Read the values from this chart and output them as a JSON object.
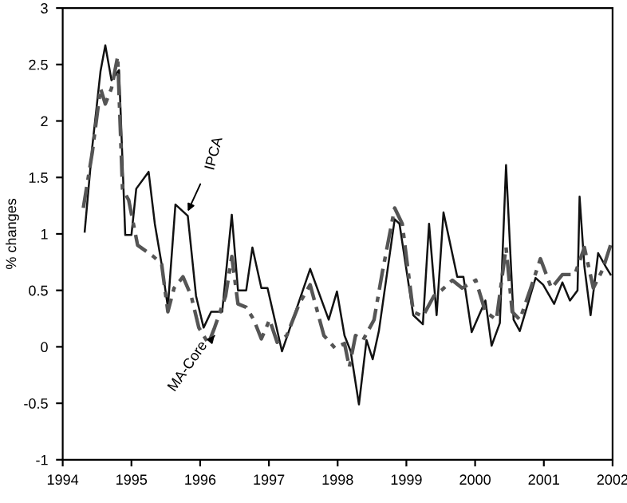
{
  "chart_data": {
    "type": "line",
    "ylabel": "% changes",
    "xlim": [
      1994,
      2002
    ],
    "ylim": [
      -1,
      3
    ],
    "xticks": [
      1994,
      1995,
      1996,
      1997,
      1998,
      1999,
      2000,
      2001,
      2002
    ],
    "yticks": [
      {
        "value": -1,
        "label": "-1"
      },
      {
        "value": -0.5,
        "label": "-0.5"
      },
      0,
      0.5,
      1,
      1.5,
      2,
      2.5,
      3
    ],
    "grid": false,
    "legend": false,
    "series": [
      {
        "color": "#111111",
        "line_style": "solid",
        "x": [
          1994.32,
          1994.43,
          1994.55,
          1994.62,
          1994.71,
          1994.82,
          1994.91,
          1995.0,
          1995.07,
          1995.25,
          1995.34,
          1995.44,
          1995.53,
          1995.64,
          1995.82,
          1995.94,
          1996.05,
          1996.16,
          1996.32,
          1996.46,
          1996.55,
          1996.67,
          1996.76,
          1996.89,
          1996.98,
          1997.19,
          1997.6,
          1997.87,
          1997.99,
          1998.1,
          1998.19,
          1998.31,
          1998.42,
          1998.51,
          1998.6,
          1998.83,
          1998.9,
          1999.1,
          1999.24,
          1999.33,
          1999.44,
          1999.54,
          1999.74,
          1999.83,
          1999.95,
          2000.15,
          2000.24,
          2000.36,
          2000.45,
          2000.56,
          2000.65,
          2000.88,
          2000.99,
          2001.15,
          2001.27,
          2001.38,
          2001.49,
          2001.52,
          2001.59,
          2001.68,
          2001.79,
          2001.9,
          2001.97
        ],
        "values": [
          1.02,
          1.77,
          2.44,
          2.67,
          2.36,
          2.45,
          0.99,
          0.99,
          1.4,
          1.55,
          1.09,
          0.73,
          0.35,
          1.26,
          1.16,
          0.45,
          0.17,
          0.31,
          0.31,
          1.17,
          0.5,
          0.5,
          0.88,
          0.52,
          0.52,
          -0.04,
          0.69,
          0.24,
          0.49,
          0.1,
          -0.04,
          -0.51,
          0.06,
          -0.11,
          0.14,
          1.13,
          1.09,
          0.28,
          0.2,
          1.09,
          0.28,
          1.19,
          0.62,
          0.62,
          0.13,
          0.41,
          0.01,
          0.21,
          1.61,
          0.24,
          0.14,
          0.61,
          0.55,
          0.38,
          0.57,
          0.41,
          0.5,
          1.33,
          0.71,
          0.28,
          0.83,
          0.71,
          0.64
        ]
      },
      {
        "color": "#555555",
        "line_style": "dashed",
        "x": [
          1994.3,
          1994.43,
          1994.55,
          1994.62,
          1994.71,
          1994.8,
          1994.87,
          1994.96,
          1995.09,
          1995.32,
          1995.44,
          1995.53,
          1995.62,
          1995.75,
          1995.87,
          1995.98,
          1996.12,
          1996.21,
          1996.37,
          1996.46,
          1996.55,
          1996.67,
          1996.78,
          1996.89,
          1997.01,
          1997.12,
          1997.26,
          1997.44,
          1997.6,
          1997.8,
          1997.96,
          1998.1,
          1998.17,
          1998.26,
          1998.37,
          1998.53,
          1998.65,
          1998.83,
          1998.94,
          1999.1,
          1999.24,
          1999.4,
          1999.51,
          1999.67,
          1999.81,
          2000.01,
          2000.15,
          2000.31,
          2000.45,
          2000.54,
          2000.65,
          2000.81,
          2000.95,
          2001.11,
          2001.27,
          2001.45,
          2001.59,
          2001.72,
          2001.86,
          2001.97
        ],
        "values": [
          1.23,
          1.72,
          2.29,
          2.15,
          2.29,
          2.57,
          1.4,
          1.3,
          0.9,
          0.8,
          0.73,
          0.31,
          0.52,
          0.62,
          0.45,
          0.17,
          0.03,
          0.17,
          0.45,
          0.8,
          0.38,
          0.35,
          0.24,
          0.07,
          0.24,
          0.04,
          0.1,
          0.38,
          0.55,
          0.1,
          -0.01,
          0.03,
          -0.18,
          0.1,
          0.06,
          0.24,
          0.66,
          1.23,
          1.09,
          0.31,
          0.27,
          0.45,
          0.5,
          0.59,
          0.52,
          0.59,
          0.31,
          0.24,
          0.88,
          0.31,
          0.24,
          0.52,
          0.78,
          0.52,
          0.64,
          0.64,
          0.88,
          0.52,
          0.69,
          0.9
        ]
      }
    ],
    "annotations": [
      {
        "text": "IPCA",
        "x": 1995.82,
        "y": 1.2
      },
      {
        "text": "MA-Core",
        "x": 1996.21,
        "y": 0.1
      }
    ]
  }
}
